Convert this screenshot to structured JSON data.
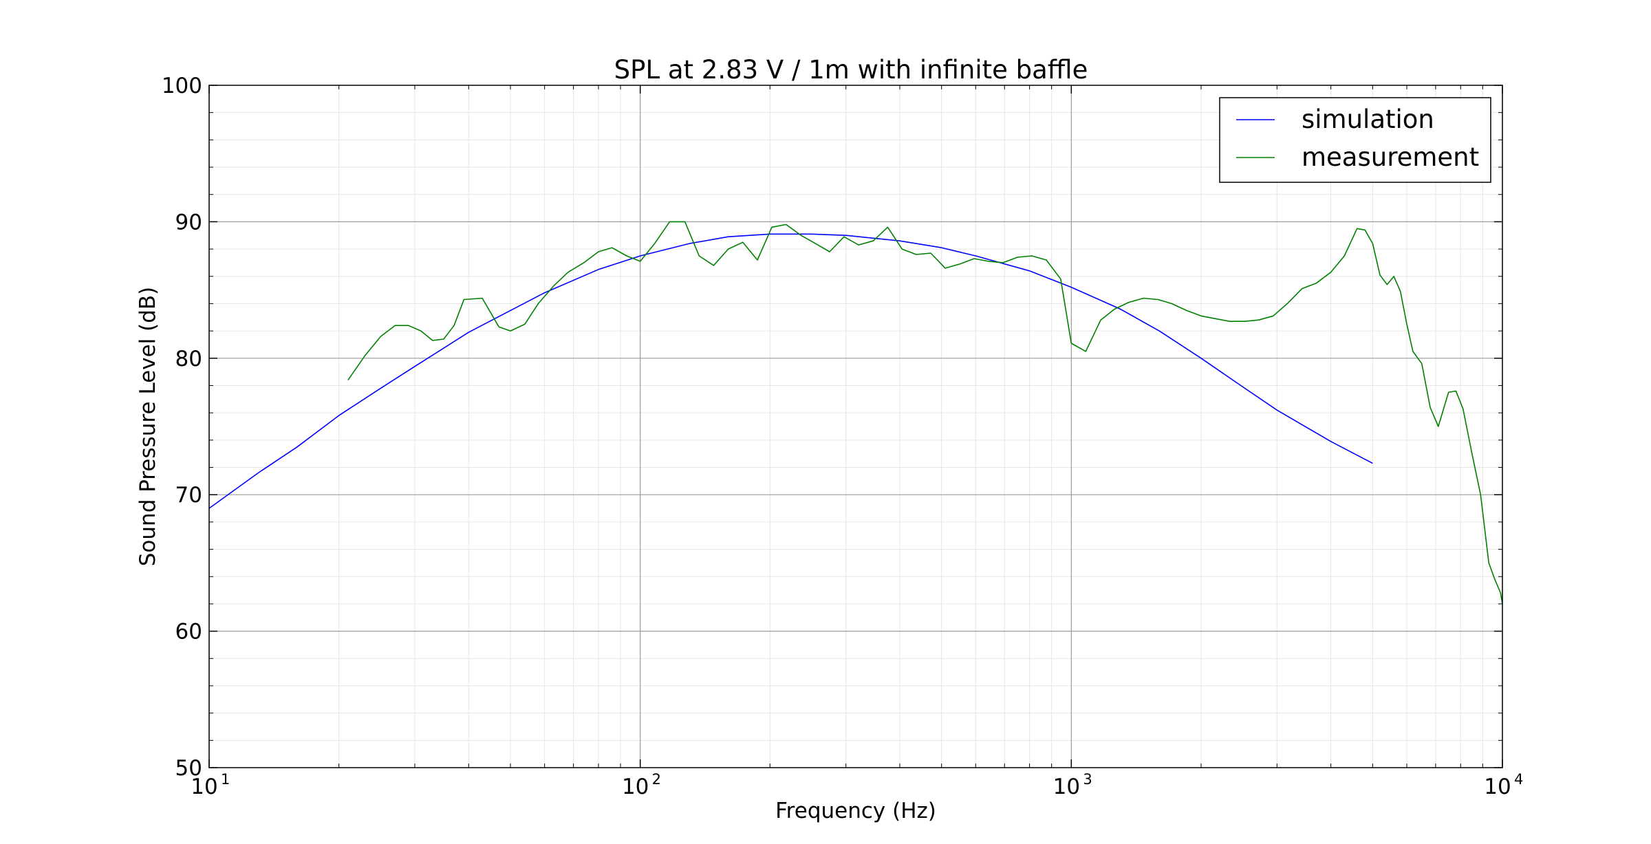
{
  "chart_data": {
    "type": "line",
    "title": "SPL at 2.83 V / 1m with infinite baffle",
    "xlabel": "Frequency (Hz)",
    "ylabel": "Sound Pressure Level (dB)",
    "xscale": "log",
    "xlim": [
      10,
      10000
    ],
    "ylim": [
      50,
      100
    ],
    "x_ticks": [
      {
        "base": "10",
        "exp": "1",
        "value": 10
      },
      {
        "base": "10",
        "exp": "2",
        "value": 100
      },
      {
        "base": "10",
        "exp": "3",
        "value": 1000
      },
      {
        "base": "10",
        "exp": "4",
        "value": 10000
      }
    ],
    "y_ticks": [
      "50",
      "60",
      "70",
      "80",
      "90",
      "100"
    ],
    "grid": true,
    "legend_position": "top-right",
    "series": [
      {
        "name": "simulation",
        "color": "#0000ff",
        "x": [
          10,
          13,
          16,
          20,
          25,
          30,
          40,
          50,
          60,
          80,
          100,
          130,
          160,
          200,
          250,
          300,
          400,
          500,
          600,
          800,
          1000,
          1300,
          1600,
          2000,
          2500,
          3000,
          4000,
          5000
        ],
        "y": [
          69.0,
          71.6,
          73.5,
          75.8,
          77.8,
          79.4,
          81.9,
          83.5,
          84.8,
          86.5,
          87.5,
          88.4,
          88.9,
          89.1,
          89.1,
          89.0,
          88.6,
          88.1,
          87.5,
          86.4,
          85.2,
          83.6,
          82.0,
          80.0,
          77.9,
          76.2,
          73.9,
          72.3
        ]
      },
      {
        "name": "measurement",
        "color": "#008000",
        "x": [
          21,
          23,
          25,
          27,
          29,
          31,
          33,
          35,
          37,
          39,
          43,
          47,
          50,
          54,
          58,
          63,
          68,
          74,
          80,
          86,
          93,
          100,
          108,
          117,
          127,
          137,
          148,
          160,
          173,
          187,
          202,
          218,
          236,
          255,
          275,
          297,
          321,
          347,
          375,
          405,
          437,
          472,
          510,
          551,
          595,
          643,
          694,
          750,
          810,
          875,
          945,
          1000,
          1080,
          1170,
          1260,
          1360,
          1470,
          1590,
          1710,
          1850,
          2000,
          2160,
          2330,
          2520,
          2720,
          2940,
          3170,
          3430,
          3700,
          4000,
          4300,
          4600,
          4800,
          5000,
          5200,
          5400,
          5600,
          5800,
          6000,
          6200,
          6500,
          6800,
          7100,
          7500,
          7800,
          8100,
          8500,
          8900,
          9300,
          9600,
          9900,
          10000
        ],
        "y": [
          78.4,
          80.2,
          81.6,
          82.4,
          82.4,
          82.0,
          81.3,
          81.4,
          82.4,
          84.3,
          84.4,
          82.3,
          82.0,
          82.5,
          84.0,
          85.3,
          86.3,
          87.0,
          87.8,
          88.1,
          87.5,
          87.1,
          88.4,
          90.0,
          90.0,
          87.5,
          86.8,
          88.0,
          88.5,
          87.2,
          89.6,
          89.8,
          89.0,
          88.4,
          87.8,
          88.9,
          88.3,
          88.6,
          89.6,
          88.0,
          87.6,
          87.7,
          86.6,
          86.9,
          87.3,
          87.1,
          87.0,
          87.4,
          87.5,
          87.2,
          85.8,
          81.1,
          80.5,
          82.8,
          83.6,
          84.1,
          84.4,
          84.3,
          84.0,
          83.5,
          83.1,
          82.9,
          82.7,
          82.7,
          82.8,
          83.1,
          84.0,
          85.1,
          85.5,
          86.3,
          87.5,
          89.5,
          89.4,
          88.4,
          86.1,
          85.4,
          86.0,
          84.9,
          82.5,
          80.5,
          79.6,
          76.4,
          75.0,
          77.5,
          77.6,
          76.3,
          73.0,
          70.0,
          65.0,
          63.8,
          62.8,
          62.0
        ]
      }
    ]
  }
}
